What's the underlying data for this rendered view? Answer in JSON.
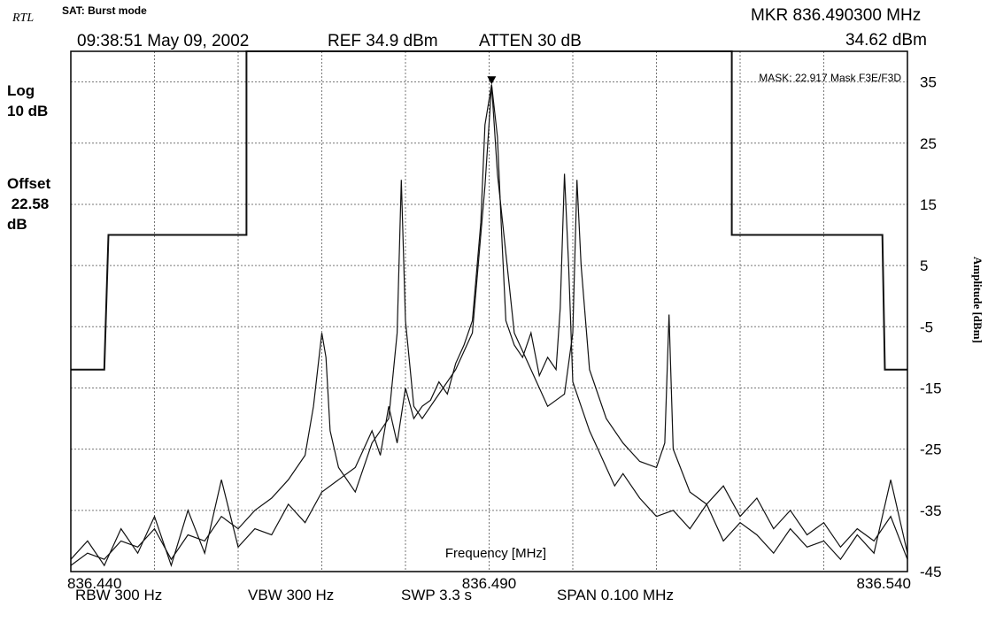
{
  "header": {
    "logo_text": "RTL",
    "mode_label": "SAT: Burst mode",
    "timestamp": "09:38:51 May 09, 2002",
    "ref_level": "REF 34.9 dBm",
    "attenuation": "ATTEN 30 dB",
    "marker_freq": "MKR  836.490300 MHz",
    "marker_amp": "34.62 dBm"
  },
  "side_labels": {
    "scale": "Log\n10 dB",
    "offset": "Offset\n 22.58\ndB"
  },
  "footer": {
    "rbw": "RBW 300 Hz",
    "vbw": "VBW 300 Hz",
    "sweep": "SWP 3.3 s",
    "span": "SPAN 0.100 MHz"
  },
  "chart_data": {
    "type": "line",
    "title": "",
    "xlabel": "Frequency [MHz]",
    "ylabel": "Amplitude [dBm]",
    "xlim": [
      836.44,
      836.54
    ],
    "ylim": [
      -45,
      40
    ],
    "x_tick_labels": [
      "836.440",
      "836.490",
      "836.540"
    ],
    "x_tick_values": [
      836.44,
      836.49,
      836.54
    ],
    "y_ticks": [
      35,
      25,
      15,
      5,
      -5,
      -15,
      -25,
      -35,
      -45
    ],
    "grid": true,
    "mask_label": "MASK: 22.917 Mask F3E/F3D",
    "marker": {
      "x": 836.4903,
      "y": 34.62
    },
    "series": [
      {
        "role": "mask",
        "x": [
          836.44,
          836.444,
          836.4445,
          836.461,
          836.461,
          836.519,
          836.519,
          836.537,
          836.5373,
          836.54
        ],
        "y": [
          -12,
          -12,
          10,
          10,
          40,
          40,
          10,
          10,
          -12,
          -12
        ]
      },
      {
        "role": "trace_1",
        "x": [
          836.44,
          836.442,
          836.444,
          836.446,
          836.448,
          836.45,
          836.452,
          836.454,
          836.456,
          836.458,
          836.46,
          836.462,
          836.464,
          836.466,
          836.468,
          836.47,
          836.472,
          836.474,
          836.476,
          836.477,
          836.478,
          836.479,
          836.48,
          836.481,
          836.482,
          836.483,
          836.484,
          836.485,
          836.486,
          836.487,
          836.488,
          836.489,
          836.4895,
          836.4903,
          836.491,
          836.4915,
          836.492,
          836.493,
          836.494,
          836.495,
          836.496,
          836.497,
          836.498,
          836.4985,
          836.499,
          836.4995,
          836.5,
          836.501,
          836.502,
          836.503,
          836.504,
          836.505,
          836.506,
          836.508,
          836.51,
          836.512,
          836.514,
          836.516,
          836.518,
          836.52,
          836.522,
          836.524,
          836.526,
          836.528,
          836.53,
          836.532,
          836.534,
          836.536,
          836.538,
          836.54
        ],
        "y": [
          -43,
          -40,
          -44,
          -38,
          -42,
          -36,
          -44,
          -35,
          -42,
          -30,
          -41,
          -38,
          -39,
          -34,
          -37,
          -32,
          -30,
          -28,
          -22,
          -26,
          -18,
          -24,
          -15,
          -20,
          -18,
          -17,
          -14,
          -16,
          -11,
          -8,
          -4,
          12,
          28,
          34.6,
          26,
          10,
          -4,
          -8,
          -10,
          -6,
          -13,
          -10,
          -12,
          -2,
          20,
          5,
          -14,
          -18,
          -22,
          -25,
          -28,
          -31,
          -29,
          -33,
          -36,
          -35,
          -38,
          -34,
          -40,
          -37,
          -39,
          -42,
          -38,
          -41,
          -40,
          -43,
          -39,
          -42,
          -30,
          -42
        ]
      },
      {
        "role": "trace_2",
        "x": [
          836.44,
          836.442,
          836.444,
          836.446,
          836.448,
          836.45,
          836.452,
          836.454,
          836.456,
          836.458,
          836.46,
          836.462,
          836.464,
          836.466,
          836.468,
          836.469,
          836.47,
          836.4705,
          836.471,
          836.472,
          836.474,
          836.476,
          836.478,
          836.479,
          836.4795,
          836.48,
          836.481,
          836.482,
          836.484,
          836.486,
          836.488,
          836.4895,
          836.4903,
          836.491,
          836.493,
          836.495,
          836.497,
          836.499,
          836.5,
          836.5005,
          836.501,
          836.502,
          836.504,
          836.506,
          836.508,
          836.51,
          836.511,
          836.5115,
          836.512,
          836.514,
          836.516,
          836.518,
          836.52,
          836.522,
          836.524,
          836.526,
          836.528,
          836.53,
          836.532,
          836.534,
          836.536,
          836.538,
          836.54
        ],
        "y": [
          -44,
          -42,
          -43,
          -40,
          -41,
          -38,
          -43,
          -39,
          -40,
          -36,
          -38,
          -35,
          -33,
          -30,
          -26,
          -18,
          -6,
          -10,
          -22,
          -28,
          -32,
          -24,
          -20,
          -6,
          19,
          -4,
          -18,
          -20,
          -16,
          -12,
          -6,
          18,
          34.5,
          20,
          -6,
          -12,
          -18,
          -16,
          -6,
          19,
          5,
          -12,
          -20,
          -24,
          -27,
          -28,
          -24,
          -3,
          -25,
          -32,
          -34,
          -31,
          -36,
          -33,
          -38,
          -35,
          -39,
          -37,
          -41,
          -38,
          -40,
          -36,
          -43
        ]
      }
    ]
  }
}
